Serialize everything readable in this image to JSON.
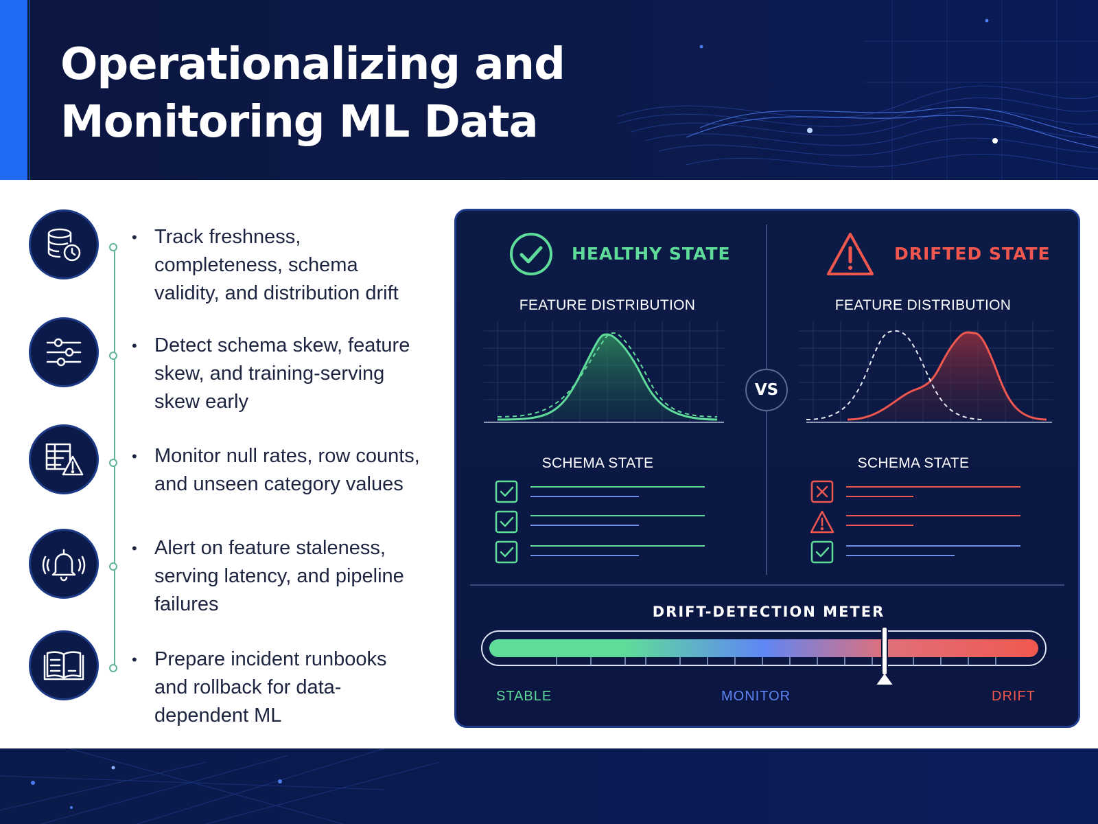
{
  "header": {
    "title_line1": "Operationalizing and",
    "title_line2": "Monitoring ML Data"
  },
  "checklist": [
    {
      "icon": "database-clock-icon",
      "text": "Track freshness, completeness, schema validity, and distribution drift"
    },
    {
      "icon": "sliders-icon",
      "text": "Detect schema skew, feature skew, and training-serving skew early"
    },
    {
      "icon": "table-warning-icon",
      "text": "Monitor null rates, row counts, and unseen category values"
    },
    {
      "icon": "bell-alert-icon",
      "text": "Alert on feature staleness, serving latency, and pipeline failures"
    },
    {
      "icon": "open-book-icon",
      "text": "Prepare incident runbooks and rollback for data-dependent ML"
    }
  ],
  "comparison": {
    "healthy": {
      "title": "HEALTHY STATE",
      "distribution_label": "FEATURE DISTRIBUTION",
      "schema_label": "SCHEMA STATE",
      "schema_rows": [
        "check",
        "check",
        "check"
      ],
      "color": "#5fdc9a"
    },
    "drifted": {
      "title": "DRIFTED STATE",
      "distribution_label": "FEATURE DISTRIBUTION",
      "schema_label": "SCHEMA STATE",
      "schema_rows": [
        "cross",
        "warning",
        "check"
      ],
      "color": "#f0584f"
    },
    "vs_label": "VS"
  },
  "meter": {
    "title": "DRIFT-DETECTION METER",
    "labels": [
      "STABLE",
      "MONITOR",
      "DRIFT"
    ],
    "label_colors": [
      "#5fdc9a",
      "#5f86f5",
      "#f0584f"
    ],
    "needle_value": 0.72
  }
}
